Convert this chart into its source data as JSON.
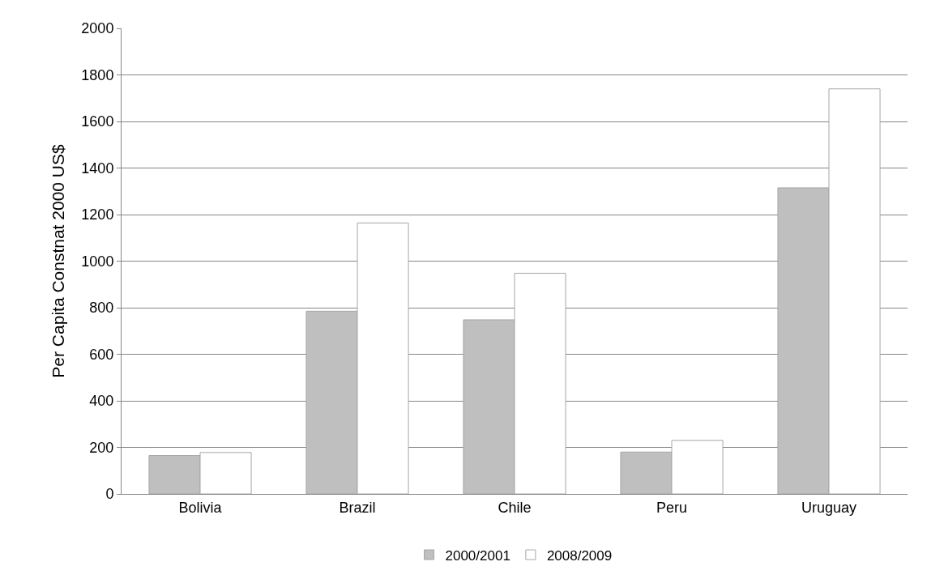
{
  "chart_data": {
    "type": "bar",
    "ylabel": "Per Capita Constnat 2000 US$",
    "categories": [
      "Bolivia",
      "Brazil",
      "Chile",
      "Peru",
      "Uruguay"
    ],
    "series": [
      {
        "name": "2000/2001",
        "color": "#bfbfbf",
        "values": [
          165,
          785,
          748,
          180,
          1315
        ]
      },
      {
        "name": "2008/2009",
        "color": "#ffffff",
        "values": [
          178,
          1164,
          948,
          230,
          1740
        ]
      }
    ],
    "ylim": [
      0,
      2000
    ],
    "yticks": [
      0,
      200,
      400,
      600,
      800,
      1000,
      1200,
      1400,
      1600,
      1800,
      2000
    ],
    "grid": "y",
    "legend": "bottom"
  }
}
